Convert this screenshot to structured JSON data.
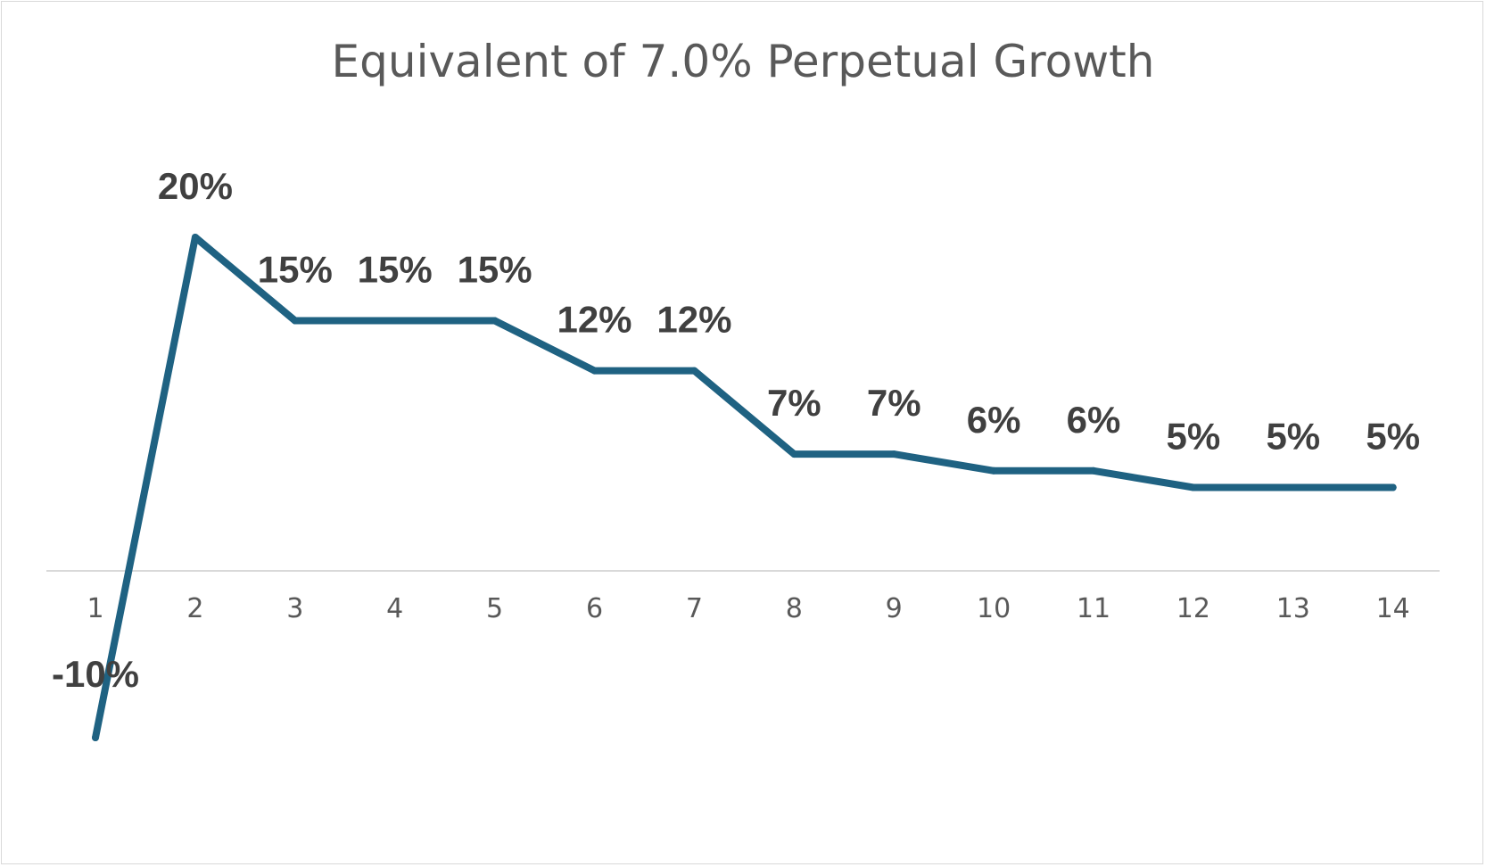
{
  "chart_data": {
    "type": "line",
    "title": "Equivalent of 7.0% Perpetual Growth",
    "xlabel": "",
    "ylabel": "",
    "categories": [
      "1",
      "2",
      "3",
      "4",
      "5",
      "6",
      "7",
      "8",
      "9",
      "10",
      "11",
      "12",
      "13",
      "14"
    ],
    "series": [
      {
        "values": [
          -10,
          20,
          15,
          15,
          15,
          12,
          12,
          7,
          7,
          6,
          6,
          5,
          5,
          5
        ],
        "data_labels": [
          "-10%",
          "20%",
          "15%",
          "15%",
          "15%",
          "12%",
          "12%",
          "7%",
          "7%",
          "6%",
          "6%",
          "5%",
          "5%",
          "5%"
        ],
        "color": "#1f6282"
      }
    ],
    "ylim": [
      -10,
      20
    ],
    "grid": false,
    "legend": "none",
    "axis_color": "#d9d9d9",
    "text_color": "#595959",
    "label_color": "#404040"
  }
}
